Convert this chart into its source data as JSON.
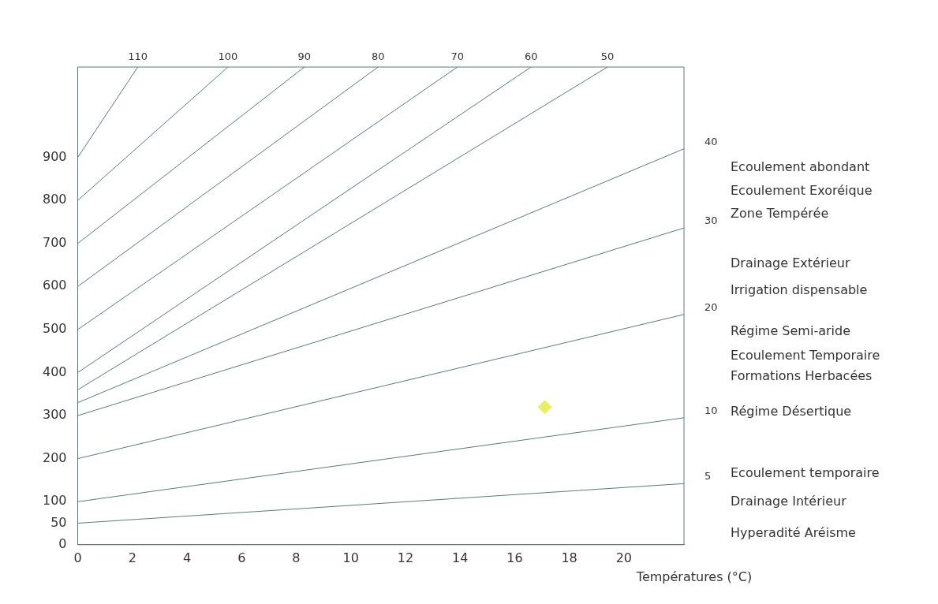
{
  "chart_data": {
    "type": "line",
    "xlabel": "Températures (°C)",
    "xlim": [
      0,
      22.2
    ],
    "xticks": [
      0,
      2,
      4,
      6,
      8,
      10,
      12,
      14,
      16,
      18,
      20
    ],
    "ylim": [
      0,
      1110
    ],
    "yticks": [
      0,
      50,
      100,
      200,
      300,
      400,
      500,
      600,
      700,
      800,
      900
    ],
    "grid": false,
    "legend": false,
    "marker": "none",
    "line_style": "solid",
    "series": [
      {
        "name": "5",
        "color": "#5a7a80",
        "x": [
          0,
          22.2
        ],
        "values": [
          50,
          142
        ]
      },
      {
        "name": "10",
        "color": "#5a7a80",
        "x": [
          0,
          22.2
        ],
        "values": [
          100,
          295
        ]
      },
      {
        "name": "20",
        "color": "#5a7a80",
        "x": [
          0,
          22.2
        ],
        "values": [
          200,
          535
        ]
      },
      {
        "name": "30",
        "color": "#5a7a80",
        "x": [
          0,
          22.2
        ],
        "values": [
          300,
          736
        ]
      },
      {
        "name": "40",
        "color": "#5a7a80",
        "x": [
          0,
          22.2
        ],
        "values": [
          330,
          920
        ]
      },
      {
        "name": "50",
        "color": "#5a7a80",
        "x": [
          0,
          19.4
        ],
        "values": [
          360,
          1110
        ]
      },
      {
        "name": "60",
        "color": "#5a7a80",
        "x": [
          0,
          16.6
        ],
        "values": [
          400,
          1110
        ]
      },
      {
        "name": "70",
        "color": "#5a7a80",
        "x": [
          0,
          13.9
        ],
        "values": [
          500,
          1110
        ]
      },
      {
        "name": "80",
        "color": "#5a7a80",
        "x": [
          0,
          11
        ],
        "values": [
          600,
          1110
        ]
      },
      {
        "name": "90",
        "color": "#5a7a80",
        "x": [
          0,
          8.3
        ],
        "values": [
          700,
          1110
        ]
      },
      {
        "name": "100",
        "color": "#5a7a80",
        "x": [
          0,
          5.5
        ],
        "values": [
          800,
          1110
        ]
      },
      {
        "name": "110",
        "color": "#5a7a80",
        "x": [
          0,
          2.2
        ],
        "values": [
          900,
          1110
        ]
      },
      {
        "type": "scatter",
        "marker": "diamond",
        "color": "#e8f060",
        "x": [
          17.1
        ],
        "values": [
          320
        ]
      }
    ],
    "annotations": [
      "Ecoulement abondant",
      "Ecoulement Exoréique",
      "Zone Tempérée",
      "Drainage Extérieur",
      "Irrigation dispensable",
      "Régime Semi-aride",
      "Ecoulement Temporaire",
      "Formations Herbacées",
      "Régime Désertique",
      "Ecoulement temporaire",
      "Drainage Intérieur",
      "Hyperadité Aréisme"
    ]
  }
}
